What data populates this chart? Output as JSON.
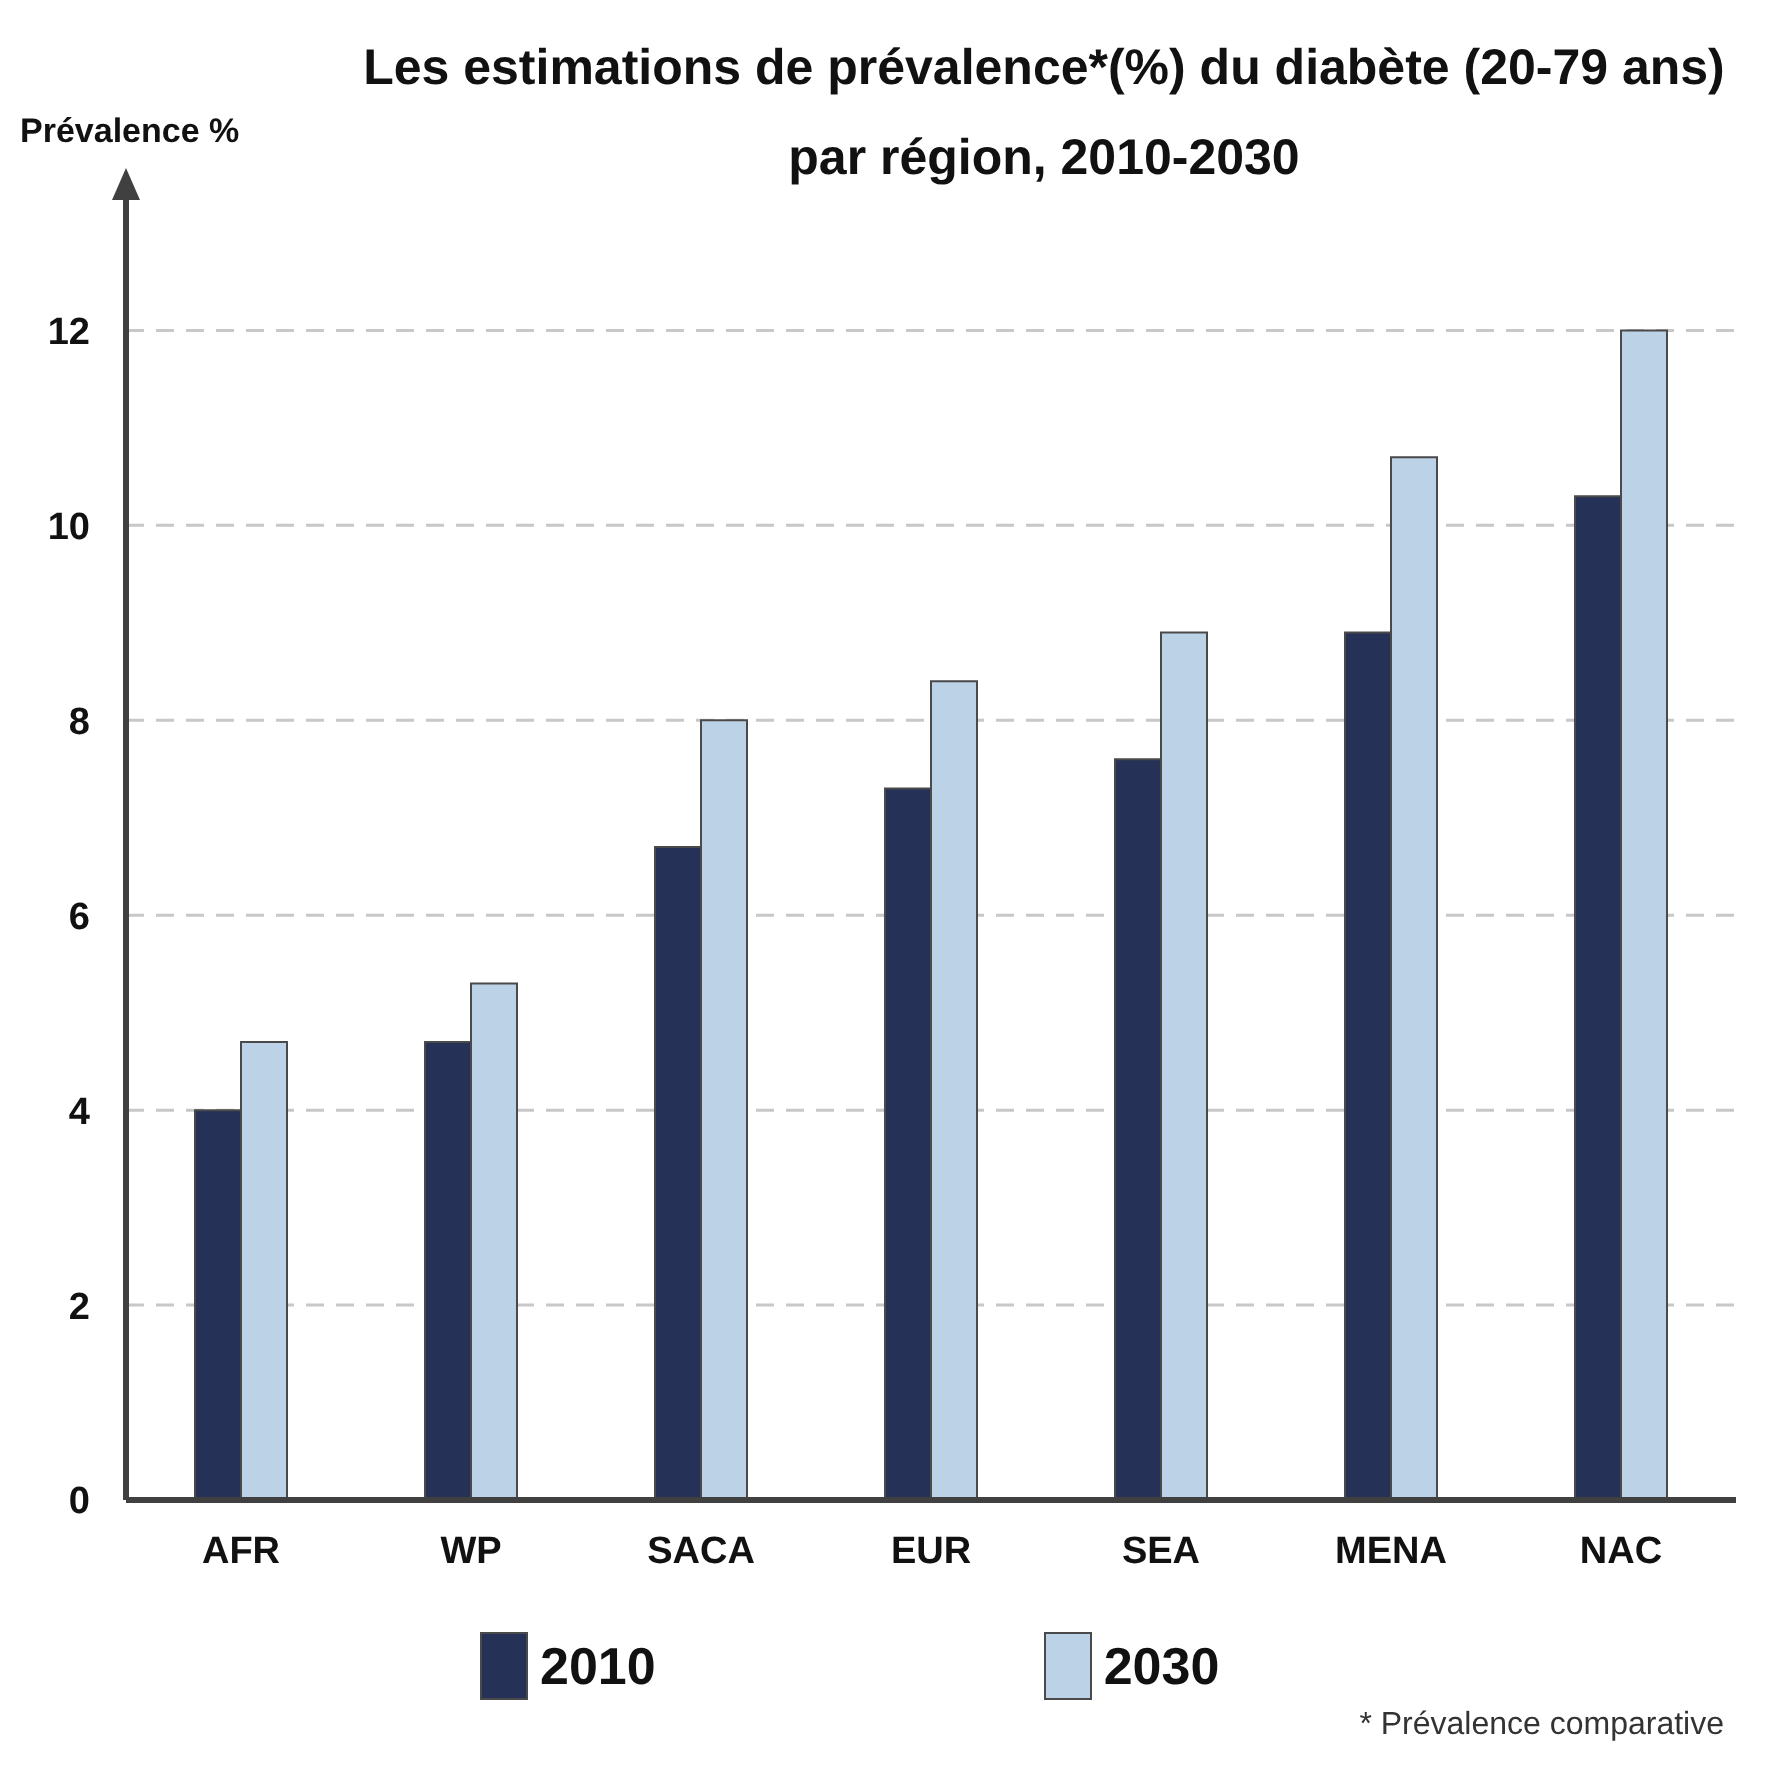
{
  "chart_data": {
    "type": "bar",
    "title": "Les estimations de prévalence*(%) du diabète (20-79 ans)\npar région, 2010-2030",
    "ylabel": "Prévalence %",
    "categories": [
      "AFR",
      "WP",
      "SACA",
      "EUR",
      "SEA",
      "MENA",
      "NAC"
    ],
    "series": [
      {
        "name": "2010",
        "color": "#253157",
        "values": [
          4.0,
          4.7,
          6.7,
          7.3,
          7.6,
          8.9,
          10.3
        ]
      },
      {
        "name": "2030",
        "color": "#bcd2e6",
        "values": [
          4.7,
          5.3,
          8.0,
          8.4,
          8.9,
          10.7,
          12.0
        ]
      }
    ],
    "ylim": [
      0,
      13.4
    ],
    "yticks": [
      0,
      2,
      4,
      6,
      8,
      10,
      12
    ],
    "grid": "y",
    "legend": "bottom",
    "annotations": [
      "* Prévalence comparative"
    ]
  }
}
